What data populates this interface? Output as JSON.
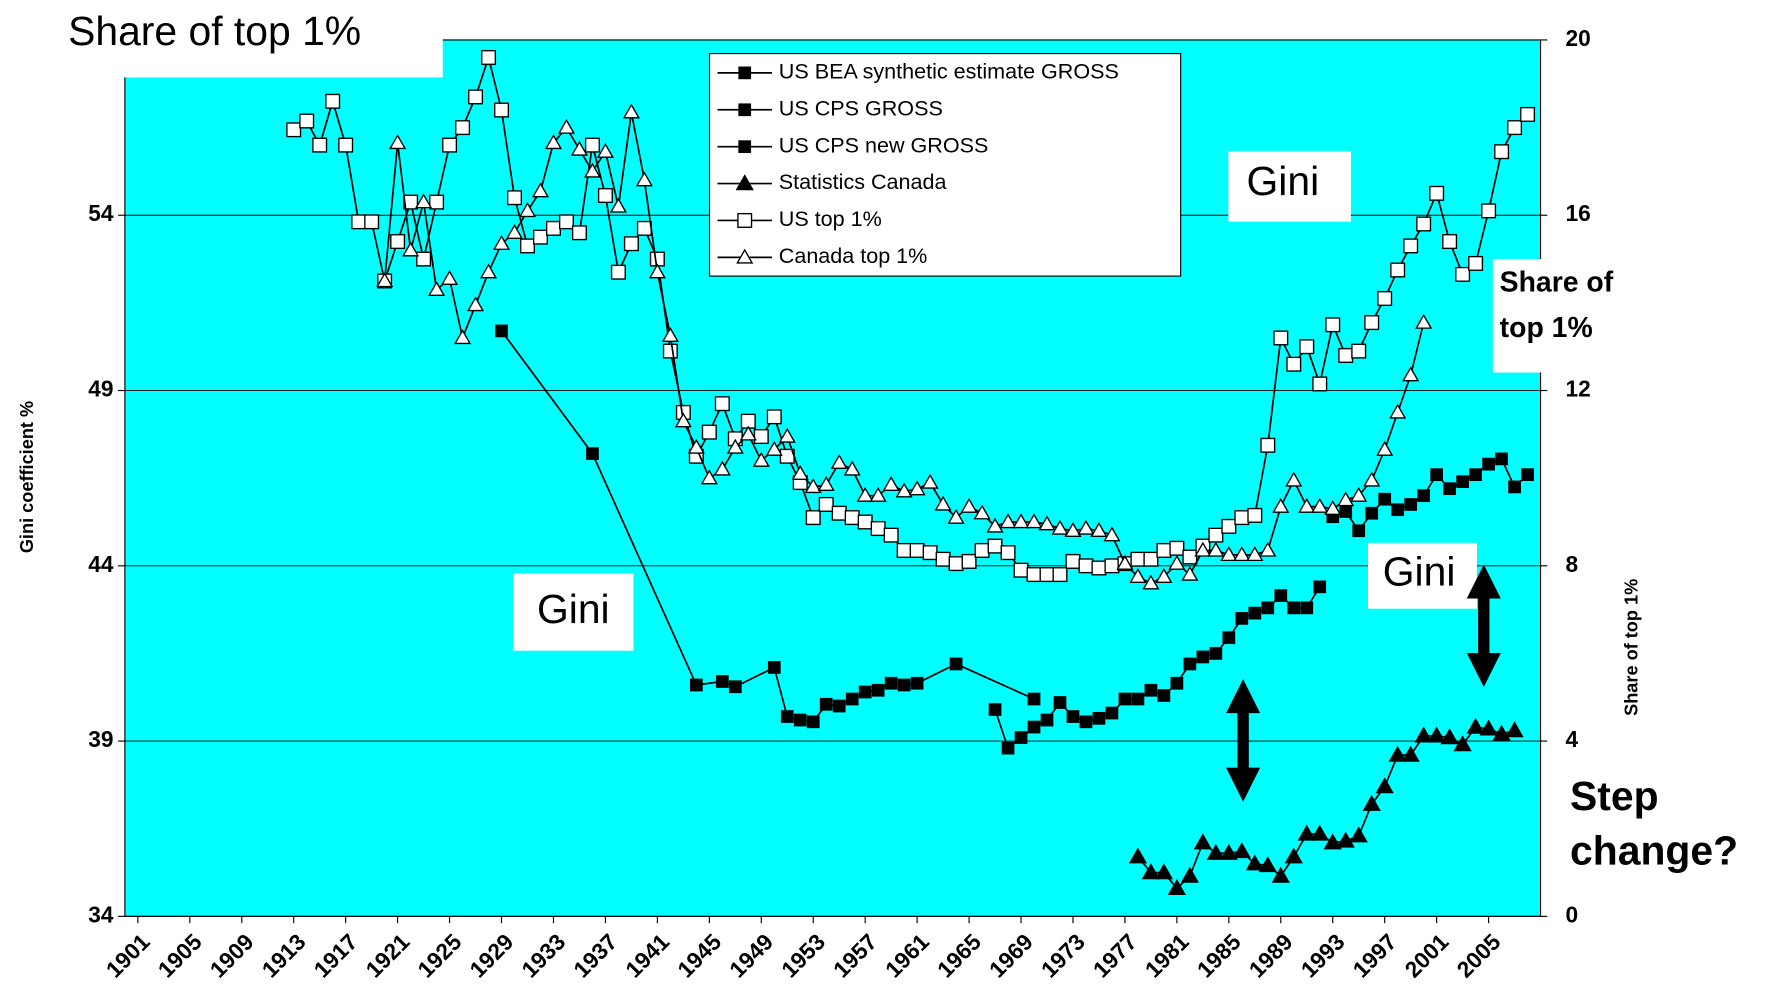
{
  "chart_data": {
    "type": "line",
    "title": "Share of top 1%",
    "y_label": "Gini coefficient %",
    "y2_label": "Share of top 1%",
    "xlim": [
      1900,
      2009
    ],
    "xticks": [
      1901,
      1905,
      1909,
      1913,
      1917,
      1921,
      1925,
      1929,
      1933,
      1937,
      1941,
      1945,
      1949,
      1953,
      1957,
      1961,
      1965,
      1969,
      1973,
      1977,
      1981,
      1985,
      1989,
      1993,
      1997,
      2001,
      2005
    ],
    "ylim": [
      34,
      59
    ],
    "yticks": [
      34,
      39,
      44,
      49,
      54
    ],
    "y2lim": [
      0,
      20
    ],
    "y2ticks": [
      0,
      4,
      8,
      12,
      16,
      20
    ],
    "grid": true,
    "background": "#00ffff",
    "annotations": [
      {
        "text": "Gini"
      },
      {
        "text": "Gini"
      },
      {
        "text": "Gini"
      },
      {
        "text": [
          "Share of",
          "top 1%"
        ]
      },
      {
        "text": [
          "Step",
          "change?"
        ]
      }
    ],
    "series": [
      {
        "name": "US BEA synthetic estimate GROSS",
        "color": "#000000",
        "marker": "square",
        "filled": true,
        "x": [
          1929,
          1936,
          1944,
          1946,
          1947,
          1950,
          1951,
          1952,
          1953,
          1954,
          1955,
          1956,
          1957,
          1958,
          1959,
          1960,
          1961,
          1964,
          1970
        ],
        "values": [
          50.7,
          47.2,
          40.6,
          40.7,
          40.55,
          41.1,
          39.7,
          39.6,
          39.55,
          40.05,
          40.0,
          40.2,
          40.4,
          40.45,
          40.65,
          40.6,
          40.65,
          41.2,
          40.2
        ]
      },
      {
        "name": "US CPS GROSS",
        "color": "#000000",
        "marker": "square",
        "filled": true,
        "x": [
          1967,
          1968,
          1969,
          1970,
          1971,
          1972,
          1973,
          1974,
          1975,
          1976,
          1977,
          1978,
          1979,
          1980,
          1981,
          1982,
          1983,
          1984,
          1985,
          1986,
          1987,
          1988,
          1989,
          1990,
          1991,
          1992
        ],
        "values": [
          39.9,
          38.8,
          39.1,
          39.4,
          39.6,
          40.1,
          39.7,
          39.55,
          39.65,
          39.8,
          40.2,
          40.2,
          40.45,
          40.3,
          40.65,
          41.2,
          41.4,
          41.5,
          41.95,
          42.5,
          42.65,
          42.8,
          43.15,
          42.8,
          42.8,
          43.4
        ]
      },
      {
        "name": "US CPS new GROSS",
        "color": "#000000",
        "marker": "square",
        "filled": true,
        "x": [
          1993,
          1994,
          1995,
          1996,
          1997,
          1998,
          1999,
          2000,
          2001,
          2002,
          2003,
          2004,
          2005,
          2006,
          2007,
          2008
        ],
        "values": [
          45.4,
          45.55,
          45.0,
          45.5,
          45.9,
          45.6,
          45.75,
          46.0,
          46.6,
          46.2,
          46.4,
          46.6,
          46.9,
          47.05,
          46.25,
          46.6
        ]
      },
      {
        "name": "Statistics Canada",
        "color": "#000000",
        "marker": "triangle",
        "filled": true,
        "x": [
          1978,
          1979,
          1980,
          1981,
          1982,
          1983,
          1984,
          1985,
          1986,
          1987,
          1988,
          1989,
          1990,
          1991,
          1992,
          1993,
          1994,
          1995,
          1996,
          1997,
          1998,
          1999,
          2000,
          2001,
          2002,
          2003,
          2004,
          2005,
          2006,
          2007
        ],
        "values": [
          35.7,
          35.25,
          35.25,
          34.8,
          35.15,
          36.1,
          35.8,
          35.8,
          35.85,
          35.5,
          35.45,
          35.15,
          35.7,
          36.35,
          36.35,
          36.1,
          36.15,
          36.3,
          37.2,
          37.7,
          38.6,
          38.6,
          39.15,
          39.15,
          39.1,
          38.9,
          39.4,
          39.35,
          39.2,
          39.3
        ]
      },
      {
        "name": "US top 1%",
        "color": "#000000",
        "marker": "square",
        "filled": false,
        "axis": "y2",
        "x": [
          1913,
          1914,
          1915,
          1916,
          1917,
          1918,
          1919,
          1920,
          1921,
          1922,
          1923,
          1924,
          1925,
          1926,
          1927,
          1928,
          1929,
          1930,
          1931,
          1932,
          1933,
          1934,
          1935,
          1936,
          1937,
          1938,
          1939,
          1940,
          1941,
          1942,
          1943,
          1944,
          1945,
          1946,
          1947,
          1948,
          1949,
          1950,
          1951,
          1952,
          1953,
          1954,
          1955,
          1956,
          1957,
          1958,
          1959,
          1960,
          1961,
          1962,
          1963,
          1964,
          1965,
          1966,
          1967,
          1968,
          1969,
          1970,
          1971,
          1972,
          1973,
          1974,
          1975,
          1976,
          1977,
          1978,
          1979,
          1980,
          1981,
          1982,
          1983,
          1984,
          1985,
          1986,
          1987,
          1988,
          1989,
          1990,
          1991,
          1992,
          1993,
          1994,
          1995,
          1996,
          1997,
          1998,
          1999,
          2000,
          2001,
          2002,
          2003,
          2004,
          2005,
          2006,
          2007,
          2008
        ],
        "values": [
          17.95,
          18.15,
          17.6,
          18.6,
          17.6,
          15.85,
          15.85,
          14.5,
          15.4,
          16.3,
          15.0,
          16.3,
          17.6,
          18.0,
          18.7,
          19.6,
          18.4,
          16.4,
          15.3,
          15.5,
          15.7,
          15.85,
          15.6,
          17.6,
          16.45,
          14.7,
          15.35,
          15.7,
          15.0,
          12.9,
          11.5,
          10.5,
          11.05,
          11.7,
          10.9,
          11.3,
          10.95,
          11.4,
          10.5,
          9.9,
          9.1,
          9.4,
          9.2,
          9.1,
          9.0,
          8.85,
          8.7,
          8.35,
          8.35,
          8.3,
          8.15,
          8.05,
          8.1,
          8.35,
          8.45,
          8.3,
          7.9,
          7.8,
          7.8,
          7.8,
          8.1,
          8.0,
          7.95,
          8.0,
          8.05,
          8.15,
          8.15,
          8.35,
          8.4,
          8.2,
          8.45,
          8.7,
          8.9,
          9.1,
          9.15,
          10.75,
          13.2,
          12.6,
          13.0,
          12.15,
          13.5,
          12.8,
          12.9,
          13.55,
          14.1,
          14.75,
          15.3,
          15.8,
          16.5,
          15.4,
          14.65,
          14.9,
          16.1,
          17.45,
          18.0,
          18.3
        ]
      },
      {
        "name": "Canada top 1%",
        "color": "#000000",
        "marker": "triangle",
        "filled": false,
        "axis": "y2",
        "x": [
          1920,
          1921,
          1922,
          1923,
          1924,
          1925,
          1926,
          1927,
          1928,
          1929,
          1930,
          1931,
          1932,
          1933,
          1934,
          1935,
          1936,
          1937,
          1938,
          1939,
          1940,
          1941,
          1942,
          1943,
          1944,
          1945,
          1946,
          1947,
          1948,
          1949,
          1950,
          1951,
          1952,
          1953,
          1954,
          1955,
          1956,
          1957,
          1958,
          1959,
          1960,
          1961,
          1962,
          1963,
          1964,
          1965,
          1966,
          1967,
          1968,
          1969,
          1970,
          1971,
          1972,
          1973,
          1974,
          1975,
          1976,
          1977,
          1978,
          1979,
          1980,
          1981,
          1982,
          1983,
          1984,
          1985,
          1986,
          1987,
          1988,
          1989,
          1990,
          1991,
          1992,
          1993,
          1994,
          1995,
          1996,
          1997,
          1998,
          1999,
          2000
        ],
        "values": [
          14.5,
          17.65,
          15.2,
          16.3,
          14.3,
          14.55,
          13.2,
          13.95,
          14.7,
          15.35,
          15.6,
          16.1,
          16.55,
          17.65,
          18.0,
          17.5,
          17.0,
          17.45,
          16.2,
          18.35,
          16.8,
          14.7,
          13.25,
          11.3,
          10.7,
          10.0,
          10.2,
          10.7,
          11.0,
          10.4,
          10.65,
          10.95,
          10.1,
          9.8,
          9.85,
          10.35,
          10.2,
          9.6,
          9.6,
          9.85,
          9.7,
          9.75,
          9.9,
          9.4,
          9.1,
          9.35,
          9.2,
          8.9,
          9.0,
          9.0,
          9.0,
          8.95,
          8.85,
          8.8,
          8.85,
          8.8,
          8.7,
          8.05,
          7.75,
          7.6,
          7.75,
          8.05,
          7.8,
          8.35,
          8.35,
          8.25,
          8.25,
          8.25,
          8.35,
          9.35,
          9.95,
          9.35,
          9.35,
          9.3,
          9.5,
          9.6,
          9.95,
          10.65,
          11.5,
          12.35,
          13.55
        ]
      }
    ]
  }
}
